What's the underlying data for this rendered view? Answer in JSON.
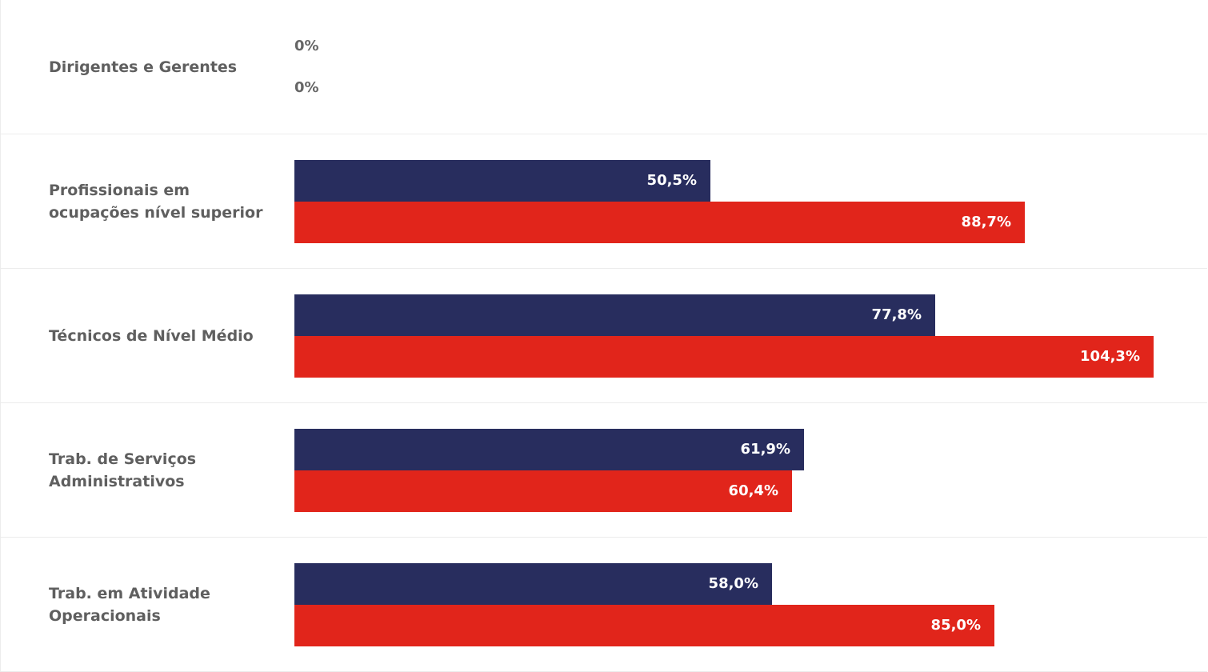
{
  "chart_data": {
    "type": "bar",
    "orientation": "horizontal",
    "categories": [
      "Dirigentes e Gerentes",
      "Profissionais em\nocupações nível superior",
      "Técnicos de Nível Médio",
      "Trab. de Serviços\nAdministrativos",
      "Trab. em Atividade\nOperacionais"
    ],
    "series": [
      {
        "color": "#282d5e",
        "values": [
          0,
          50.5,
          77.8,
          61.9,
          58.0
        ],
        "labels": [
          "0%",
          "50,5%",
          "77,8%",
          "61,9%",
          "58,0%"
        ]
      },
      {
        "color": "#e1251b",
        "values": [
          0,
          88.7,
          104.3,
          60.4,
          85.0
        ],
        "labels": [
          "0%",
          "88,7%",
          "104,3%",
          "60,4%",
          "85,0%"
        ]
      }
    ],
    "xlim": [
      0,
      104.3
    ],
    "grid": false,
    "legend": "none"
  }
}
